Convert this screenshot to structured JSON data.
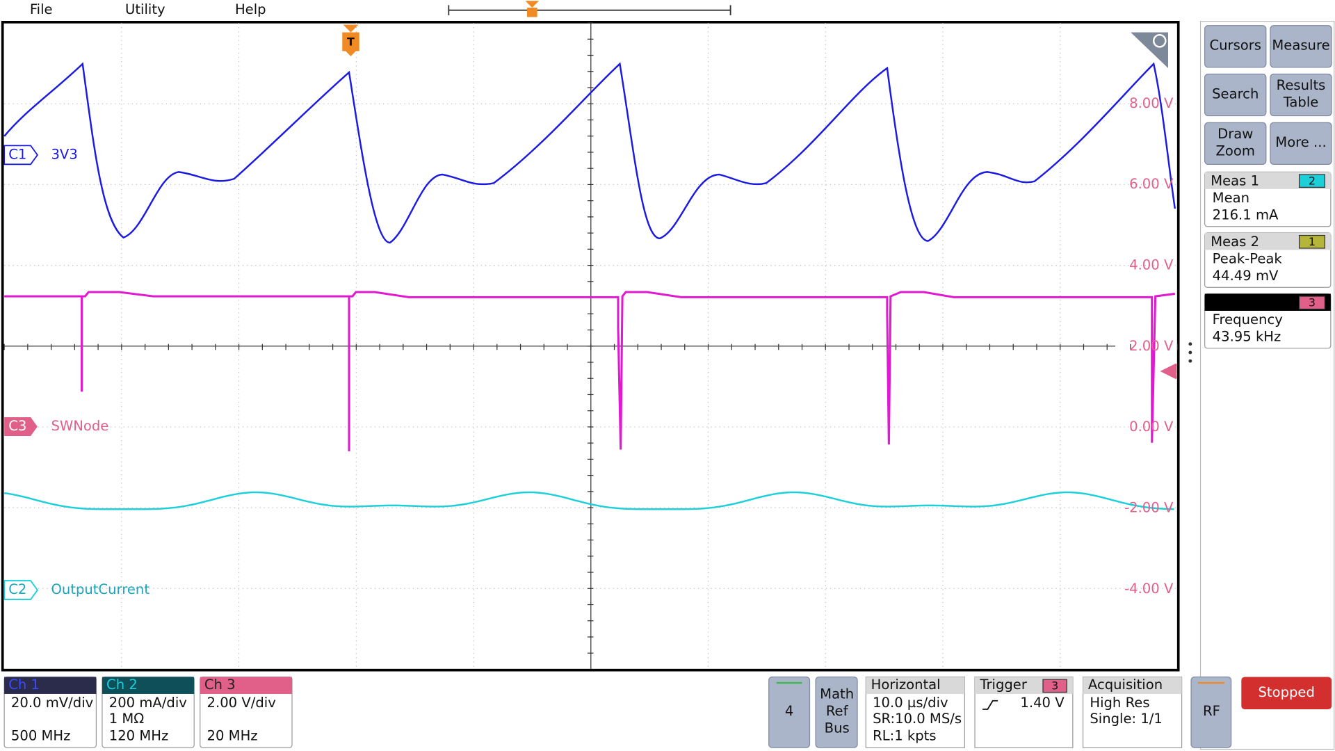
{
  "menu": {
    "items": [
      "File",
      "Utility",
      "Help"
    ]
  },
  "trigger_marker": "T",
  "buttons": [
    {
      "lines": [
        "Cursors"
      ]
    },
    {
      "lines": [
        "Measure"
      ]
    },
    {
      "lines": [
        "Search"
      ]
    },
    {
      "lines": [
        "Results",
        "Table"
      ]
    },
    {
      "lines": [
        "Draw",
        "Zoom"
      ]
    },
    {
      "lines": [
        "More ..."
      ]
    }
  ],
  "measurements": [
    {
      "title": "Meas 1",
      "source": "2",
      "type": "Mean",
      "value": "216.1 mA"
    },
    {
      "title": "Meas 2",
      "source": "1",
      "type": "Peak-Peak",
      "value": "44.49 mV"
    },
    {
      "source": "3",
      "type": "Frequency",
      "value": "43.95 kHz"
    }
  ],
  "scale_labels": [
    "8.00 V",
    "6.00 V",
    "4.00 V",
    "2.00 V",
    "0.00 V",
    "-2.00 V",
    "-4.00 V"
  ],
  "traces": [
    {
      "badge": "C1",
      "name": "3V3"
    },
    {
      "badge": "C3",
      "name": "SWNode"
    },
    {
      "badge": "C2",
      "name": "OutputCurrent"
    }
  ],
  "channels": [
    {
      "title": "Ch 1",
      "lines": [
        "20.0 mV/div",
        "500 MHz"
      ]
    },
    {
      "title": "Ch 2",
      "lines": [
        "200 mA/div",
        "1 MΩ",
        "120 MHz"
      ]
    },
    {
      "title": "Ch 3",
      "lines": [
        "2.00 V/div",
        "20 MHz"
      ]
    }
  ],
  "controls": {
    "add_channel": "4",
    "math": [
      "Math",
      "Ref",
      "Bus"
    ],
    "horizontal": {
      "title": "Horizontal",
      "lines": [
        "10.0 µs/div",
        "SR:10.0 MS/s",
        "RL:1 kpts"
      ]
    },
    "trigger": {
      "title": "Trigger",
      "source": "3",
      "level": "1.40 V"
    },
    "acquisition": {
      "title": "Acquisition",
      "lines": [
        "High Res",
        "Single: 1/1"
      ]
    },
    "rf": "RF",
    "status": "Stopped"
  }
}
